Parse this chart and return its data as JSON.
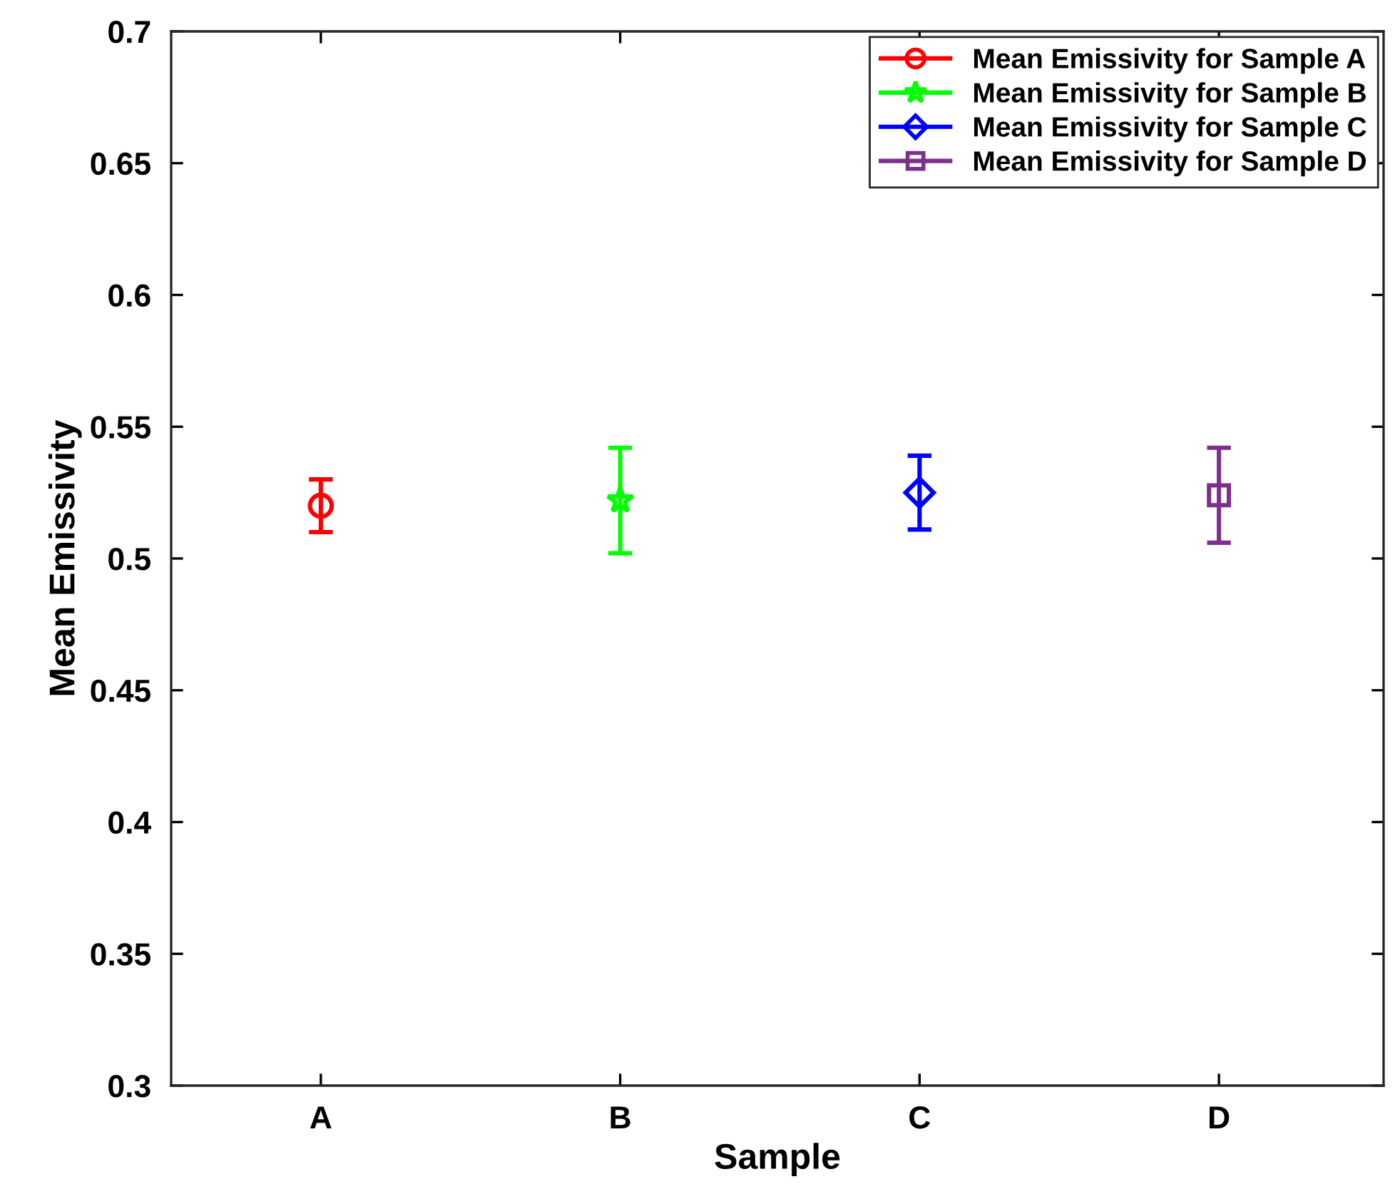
{
  "chart_data": {
    "type": "scatter",
    "xlabel": "Sample",
    "ylabel": "Mean Emissivity",
    "categories": [
      "A",
      "B",
      "C",
      "D"
    ],
    "ylim": [
      0.3,
      0.7
    ],
    "yticks": [
      0.3,
      0.35,
      0.4,
      0.45,
      0.5,
      0.55,
      0.6,
      0.65,
      0.7
    ],
    "grid": false,
    "legend": "top right",
    "series": [
      {
        "name": "Mean Emissivity for Sample A",
        "color": "#ff0000",
        "marker": "circle",
        "values": [
          0.52,
          null,
          null,
          null
        ],
        "errors": [
          0.01,
          null,
          null,
          null
        ]
      },
      {
        "name": "Mean Emissivity for Sample B",
        "color": "#00ff00",
        "marker": "star",
        "values": [
          null,
          0.522,
          null,
          null
        ],
        "errors": [
          null,
          0.02,
          null,
          null
        ]
      },
      {
        "name": "Mean Emissivity for Sample C",
        "color": "#0000ff",
        "marker": "diamond",
        "values": [
          null,
          null,
          0.525,
          null
        ],
        "errors": [
          null,
          null,
          0.014,
          null
        ]
      },
      {
        "name": "Mean Emissivity for Sample D",
        "color": "#7e2f8e",
        "marker": "square",
        "values": [
          null,
          null,
          null,
          0.524
        ],
        "errors": [
          null,
          null,
          null,
          0.018
        ]
      }
    ]
  }
}
